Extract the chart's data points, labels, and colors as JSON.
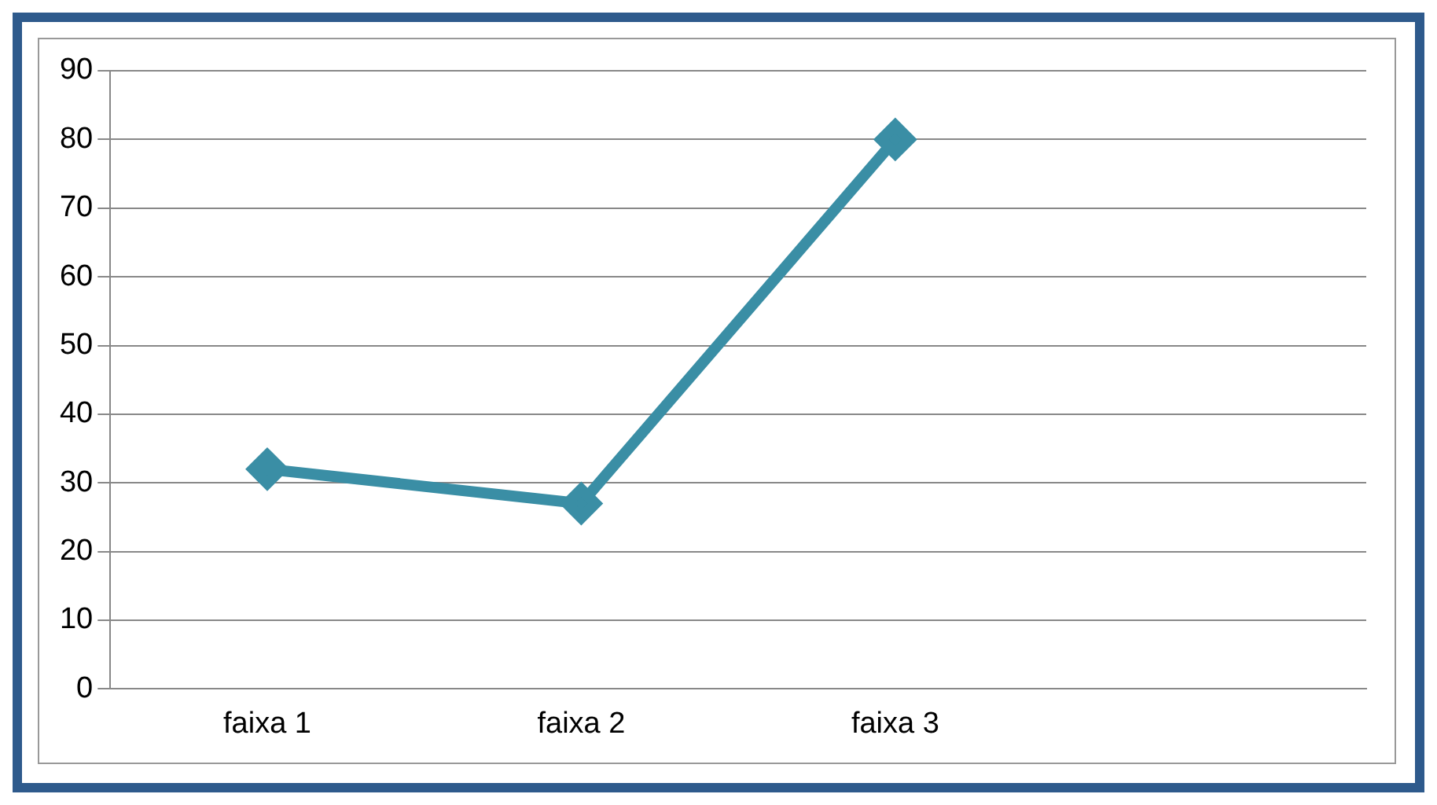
{
  "chart_data": {
    "type": "line",
    "categories": [
      "faixa 1",
      "faixa 2",
      "faixa 3",
      null
    ],
    "series": [
      {
        "color": "#3a8ea5",
        "values": [
          32,
          27,
          80,
          null
        ]
      }
    ],
    "ylim": [
      0,
      90
    ],
    "yticks": [
      0,
      10,
      20,
      30,
      40,
      50,
      60,
      70,
      80,
      90
    ],
    "grid": "y",
    "legend": false,
    "marker": "diamond",
    "line_style": "solid"
  }
}
